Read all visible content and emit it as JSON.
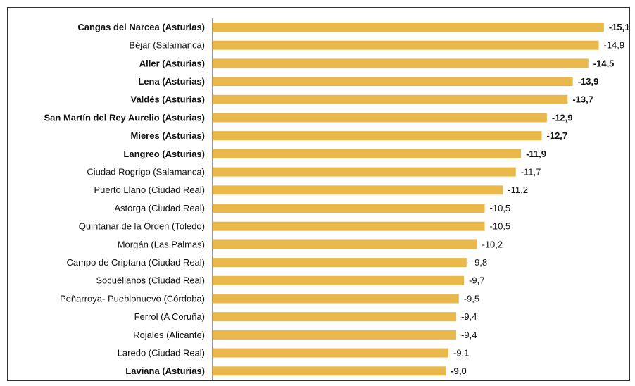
{
  "chart_data": {
    "type": "hbar",
    "categories": [
      "Cangas del Narcea (Asturias)",
      "Béjar (Salamanca)",
      "Aller (Asturias)",
      "Lena (Asturias)",
      "Valdés (Asturias)",
      "San Martín del Rey Aurelio (Asturias)",
      "Mieres (Asturias)",
      "Langreo (Asturias)",
      "Ciudad Rogrigo (Salamanca)",
      "Puerto Llano (Ciudad Real)",
      "Astorga (Ciudad Real)",
      "Quintanar de la Orden (Toledo)",
      "Morgán (Las Palmas)",
      "Campo de Criptana (Ciudad Real)",
      "Socuéllanos (Ciudad Real)",
      "Peñarroya- Pueblonuevo (Córdoba)",
      "Ferrol (A Coruña)",
      "Rojales (Alicante)",
      "Laredo (Ciudad Real)",
      "Laviana (Asturias)"
    ],
    "values": [
      -15.1,
      -14.9,
      -14.5,
      -13.9,
      -13.7,
      -12.9,
      -12.7,
      -11.9,
      -11.7,
      -11.2,
      -10.5,
      -10.5,
      -10.2,
      -9.8,
      -9.7,
      -9.5,
      -9.4,
      -9.4,
      -9.1,
      -9.0
    ],
    "value_labels": [
      "-15,1",
      "-14,9",
      "-14,5",
      "-13,9",
      "-13,7",
      "-12,9",
      "-12,7",
      "-11,9",
      "-11,7",
      "-11,2",
      "-10,5",
      "-10,5",
      "-10,2",
      "-9,8",
      "-9,7",
      "-9,5",
      "-9,4",
      "-9,4",
      "-9,1",
      "-9,0"
    ],
    "bold": [
      true,
      false,
      true,
      true,
      true,
      true,
      true,
      true,
      false,
      false,
      false,
      false,
      false,
      false,
      false,
      false,
      false,
      false,
      false,
      true
    ],
    "color": "#e8b84b",
    "xlim": [
      0,
      -16
    ]
  }
}
